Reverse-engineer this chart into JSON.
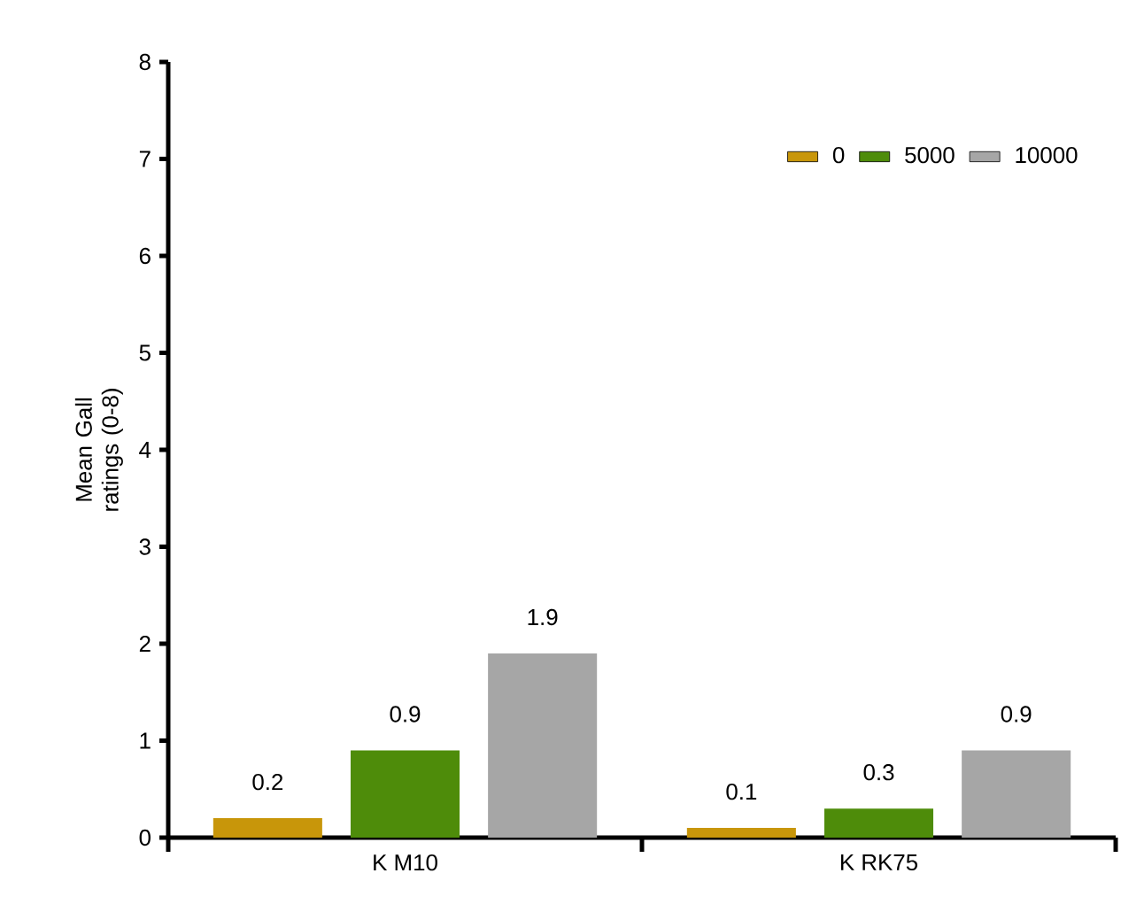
{
  "chart_data": {
    "type": "bar",
    "ylabel": "Mean Gall ratings (0-8)",
    "categories": [
      "K M10",
      "K RK75"
    ],
    "series": [
      {
        "name": "0",
        "color": "#c8960a",
        "values": [
          0.2,
          0.1
        ]
      },
      {
        "name": "5000",
        "color": "#4e8c0a",
        "values": [
          0.9,
          0.3
        ]
      },
      {
        "name": "10000",
        "color": "#a6a6a6",
        "values": [
          1.9,
          0.9
        ]
      }
    ],
    "ylim": [
      0,
      8
    ],
    "yticks": [
      0,
      1,
      2,
      3,
      4,
      5,
      6,
      7,
      8
    ],
    "data_labels": true,
    "legend": "top right",
    "grid": false
  }
}
